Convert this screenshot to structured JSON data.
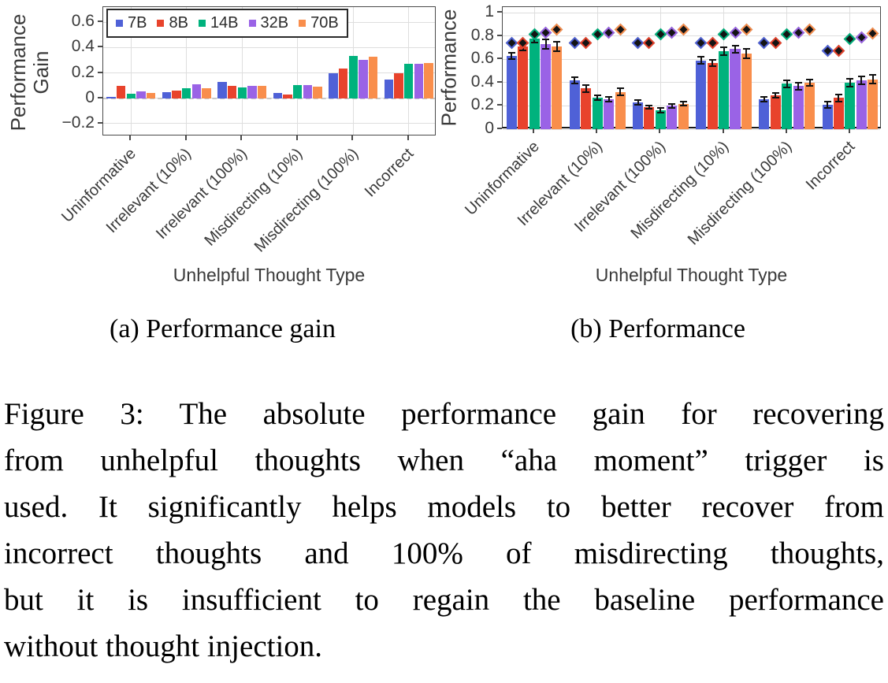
{
  "figure": {
    "subcaption_a": "(a) Performance gain",
    "subcaption_b": "(b) Performance",
    "caption_lines": [
      "Figure 3: The absolute performance gain for recovering",
      "from unhelpful thoughts when “aha moment” trigger is",
      "used. It significantly helps models to better recover from",
      "incorrect thoughts and 100% of misdirecting thoughts,",
      "but it is insufficient to regain the baseline performance",
      "without thought injection."
    ]
  },
  "colors": {
    "7B": "#4f61d7",
    "8B": "#e8432c",
    "14B": "#00b27d",
    "32B": "#9a63e6",
    "70B": "#f98e4c",
    "axis_text": "#3a3a3a",
    "grid": "#dedede",
    "frame": "#4a4a4a",
    "diamond_core": "#141414"
  },
  "chart_data": [
    {
      "type": "bar",
      "title": "",
      "ylabel": "Performance Gain",
      "ylabel_lines": [
        "Performance",
        "Gain"
      ],
      "xlabel": "Unhelpful Thought Type",
      "categories": [
        "Uninformative",
        "Irrelevant (10%)",
        "Irrelevant (100%)",
        "Misdirecting (10%)",
        "Misdirecting (100%)",
        "Incorrect"
      ],
      "ylim": [
        -0.3,
        0.72
      ],
      "yticks": [
        0.6,
        0.4,
        0.2,
        0,
        -0.2
      ],
      "ytick_labels": [
        "0.6",
        "0.4",
        "0.2",
        "0",
        "−0.2"
      ],
      "zero_line_dashed": true,
      "legend_position": "top-left",
      "legend_labels": [
        "7B",
        "8B",
        "14B",
        "32B",
        "70B"
      ],
      "series": [
        {
          "name": "7B",
          "values": [
            0.012,
            0.05,
            0.13,
            0.04,
            0.2,
            0.15
          ]
        },
        {
          "name": "8B",
          "values": [
            0.1,
            0.06,
            0.095,
            0.03,
            0.235,
            0.2
          ]
        },
        {
          "name": "14B",
          "values": [
            0.035,
            0.08,
            0.085,
            0.105,
            0.335,
            0.27
          ]
        },
        {
          "name": "32B",
          "values": [
            0.055,
            0.11,
            0.1,
            0.105,
            0.305,
            0.275
          ]
        },
        {
          "name": "70B",
          "values": [
            0.04,
            0.08,
            0.1,
            0.09,
            0.33,
            0.28
          ]
        }
      ]
    },
    {
      "type": "bar",
      "title": "",
      "ylabel": "Performance",
      "ylabel_lines": [
        "Performance"
      ],
      "xlabel": "Unhelpful Thought Type",
      "categories": [
        "Uninformative",
        "Irrelevant (10%)",
        "Irrelevant (100%)",
        "Misdirecting (10%)",
        "Misdirecting (100%)",
        "Incorrect"
      ],
      "ylim": [
        0,
        1.05
      ],
      "yticks": [
        1,
        0.8,
        0.6,
        0.4,
        0.2,
        0
      ],
      "ytick_labels": [
        "1",
        "0.8",
        "0.6",
        "0.4",
        "0.2",
        "0"
      ],
      "zero_line_dashed": false,
      "legend_labels": [],
      "series": [
        {
          "name": "7B",
          "values": [
            0.63,
            0.42,
            0.23,
            0.59,
            0.26,
            0.21
          ],
          "errors": [
            0.03,
            0.03,
            0.02,
            0.03,
            0.02,
            0.025
          ],
          "baseline_markers": [
            0.74,
            0.74,
            0.74,
            0.74,
            0.74,
            0.675
          ]
        },
        {
          "name": "8B",
          "values": [
            0.71,
            0.35,
            0.19,
            0.57,
            0.29,
            0.27
          ],
          "errors": [
            0.03,
            0.03,
            0.015,
            0.025,
            0.02,
            0.03
          ],
          "baseline_markers": [
            0.74,
            0.74,
            0.74,
            0.74,
            0.74,
            0.675
          ]
        },
        {
          "name": "14B",
          "values": [
            0.78,
            0.27,
            0.16,
            0.67,
            0.39,
            0.4
          ],
          "errors": [
            0.035,
            0.02,
            0.02,
            0.035,
            0.03,
            0.035
          ],
          "baseline_markers": [
            0.815,
            0.815,
            0.815,
            0.815,
            0.815,
            0.775
          ]
        },
        {
          "name": "32B",
          "values": [
            0.73,
            0.26,
            0.2,
            0.69,
            0.37,
            0.42
          ],
          "errors": [
            0.04,
            0.02,
            0.02,
            0.03,
            0.03,
            0.035
          ],
          "baseline_markers": [
            0.83,
            0.83,
            0.83,
            0.83,
            0.83,
            0.79
          ]
        },
        {
          "name": "70B",
          "values": [
            0.71,
            0.32,
            0.22,
            0.65,
            0.4,
            0.43
          ],
          "errors": [
            0.04,
            0.03,
            0.02,
            0.04,
            0.03,
            0.035
          ],
          "baseline_markers": [
            0.855,
            0.855,
            0.855,
            0.855,
            0.855,
            0.82
          ]
        }
      ]
    }
  ]
}
